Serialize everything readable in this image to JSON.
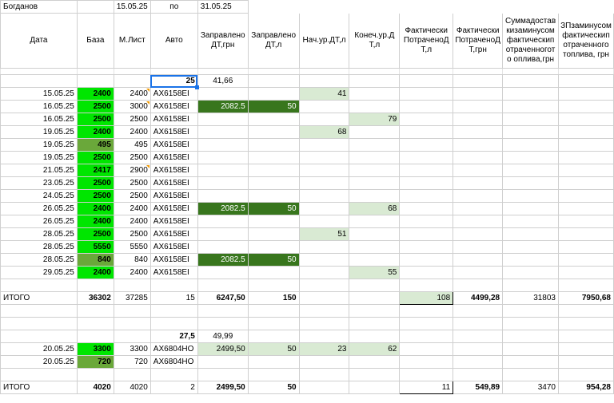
{
  "header": {
    "name": "Богданов",
    "date_from": "15.05.25",
    "by_label": "по",
    "date_to": "31.05.25"
  },
  "columns": [
    "Дата",
    "База",
    "М.Лист",
    "Авто",
    "Заправлено ДТ,грн",
    "Заправлено ДТ,л",
    "Нач.ур.ДТ,л",
    "Конеч.ур.ДТ,л",
    "Фактически ПотраченоДТ,л",
    "Фактически ПотраченоДТ,грн",
    "Суммадоставкизаминусомфактическипотраченногото оплива,грн",
    "ЗПзаминусомфактическипотраченного топлива, грн"
  ],
  "group1": {
    "top_row": [
      "",
      "",
      "",
      "25",
      "41,66",
      "",
      "",
      "",
      "",
      "",
      "",
      ""
    ],
    "rows": [
      [
        "15.05.25",
        "2400",
        "2400",
        "AX6158EI",
        "",
        "",
        "41",
        "",
        "",
        "",
        "",
        ""
      ],
      [
        "16.05.25",
        "2500",
        "3000",
        "AX6158EI",
        "2082.5",
        "50",
        "",
        "",
        "",
        "",
        "",
        ""
      ],
      [
        "16.05.25",
        "2500",
        "2500",
        "AX6158EI",
        "",
        "",
        "",
        "79",
        "",
        "",
        "",
        ""
      ],
      [
        "19.05.25",
        "2400",
        "2400",
        "AX6158EI",
        "",
        "",
        "68",
        "",
        "",
        "",
        "",
        ""
      ],
      [
        "19.05.25",
        "495",
        "495",
        "AX6158EI",
        "",
        "",
        "",
        "",
        "",
        "",
        "",
        ""
      ],
      [
        "19.05.25",
        "2500",
        "2500",
        "AX6158EI",
        "",
        "",
        "",
        "",
        "",
        "",
        "",
        ""
      ],
      [
        "21.05.25",
        "2417",
        "2900",
        "AX6158EI",
        "",
        "",
        "",
        "",
        "",
        "",
        "",
        ""
      ],
      [
        "23.05.25",
        "2500",
        "2500",
        "AX6158EI",
        "",
        "",
        "",
        "",
        "",
        "",
        "",
        ""
      ],
      [
        "24.05.25",
        "2500",
        "2500",
        "AX6158EI",
        "",
        "",
        "",
        "",
        "",
        "",
        "",
        ""
      ],
      [
        "26.05.25",
        "2400",
        "2400",
        "AX6158EI",
        "2082.5",
        "50",
        "",
        "68",
        "",
        "",
        "",
        ""
      ],
      [
        "26.05.25",
        "2400",
        "2400",
        "AX6158EI",
        "",
        "",
        "",
        "",
        "",
        "",
        "",
        ""
      ],
      [
        "28.05.25",
        "2500",
        "2500",
        "AX6158EI",
        "",
        "",
        "51",
        "",
        "",
        "",
        "",
        ""
      ],
      [
        "28.05.25",
        "5550",
        "5550",
        "AX6158EI",
        "",
        "",
        "",
        "",
        "",
        "",
        "",
        ""
      ],
      [
        "28.05.25",
        "840",
        "840",
        "AX6158EI",
        "2082.5",
        "50",
        "",
        "",
        "",
        "",
        "",
        ""
      ],
      [
        "29.05.25",
        "2400",
        "2400",
        "AX6158EI",
        "",
        "",
        "",
        "55",
        "",
        "",
        "",
        ""
      ]
    ],
    "total": [
      "ИТОГО",
      "36302",
      "37285",
      "15",
      "6247,50",
      "150",
      "",
      "",
      "108",
      "4499,28",
      "31803",
      "7950,68"
    ]
  },
  "group2": {
    "top_row": [
      "",
      "",
      "",
      "27,5",
      "49,99",
      "",
      "",
      "",
      "",
      "",
      "",
      ""
    ],
    "rows": [
      [
        "20.05.25",
        "3300",
        "3300",
        "AX6804HO",
        "2499,50",
        "50",
        "23",
        "62",
        "",
        "",
        "",
        ""
      ],
      [
        "20.05.25",
        "720",
        "720",
        "AX6804HO",
        "",
        "",
        "",
        "",
        "",
        "",
        "",
        ""
      ]
    ],
    "total": [
      "ИТОГО",
      "4020",
      "4020",
      "2",
      "2499,50",
      "50",
      "",
      "",
      "11",
      "549,89",
      "3470",
      "954,28"
    ]
  },
  "colors": {
    "bright_green": "#00e600",
    "olive_green": "#6aa83a",
    "dark_green": "#38761d",
    "light_green": "#d9ead3",
    "selection_blue": "#1a73e8",
    "comment_marker": "#f29900"
  }
}
